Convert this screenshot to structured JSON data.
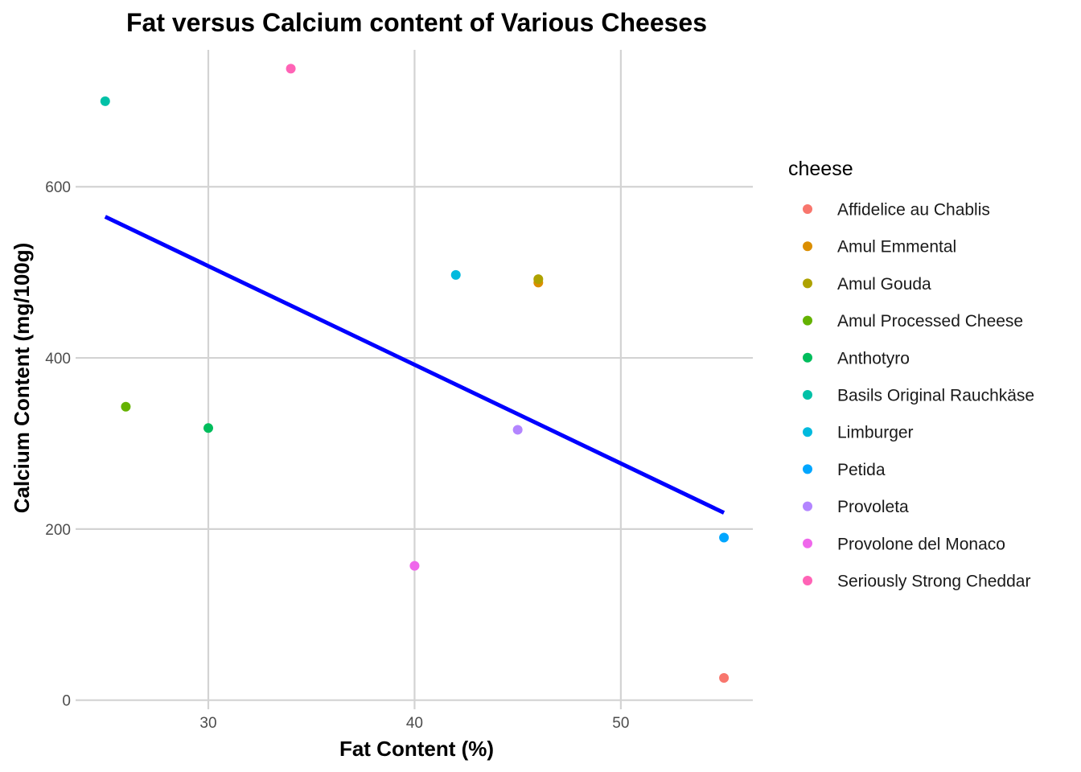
{
  "chart_data": {
    "type": "scatter",
    "title": "Fat versus Calcium content of Various Cheeses",
    "xlabel": "Fat Content (%)",
    "ylabel": "Calcium Content (mg/100g)",
    "xlim": [
      23.8,
      56.4
    ],
    "ylim": [
      -5,
      760
    ],
    "x_ticks": [
      30,
      40,
      50
    ],
    "y_ticks": [
      0,
      200,
      400,
      600
    ],
    "grid": true,
    "legend": {
      "title": "cheese",
      "placement": "right"
    },
    "series": [
      {
        "name": "Affidelice au Chablis",
        "color": "#F8766D",
        "x": [
          55
        ],
        "y": [
          26
        ]
      },
      {
        "name": "Amul Emmental",
        "color": "#DB8E00",
        "x": [
          46
        ],
        "y": [
          488
        ]
      },
      {
        "name": "Amul Gouda",
        "color": "#AEA200",
        "x": [
          46
        ],
        "y": [
          492
        ]
      },
      {
        "name": "Amul Processed Cheese",
        "color": "#64B200",
        "x": [
          26
        ],
        "y": [
          343
        ]
      },
      {
        "name": "Anthotyro",
        "color": "#00BD5C",
        "x": [
          30
        ],
        "y": [
          318
        ]
      },
      {
        "name": "Basils Original Rauchkäse",
        "color": "#00C1A7",
        "x": [
          25
        ],
        "y": [
          700
        ]
      },
      {
        "name": "Limburger",
        "color": "#00BADE",
        "x": [
          42
        ],
        "y": [
          497
        ]
      },
      {
        "name": "Petida",
        "color": "#00A6FF",
        "x": [
          55
        ],
        "y": [
          190
        ]
      },
      {
        "name": "Provoleta",
        "color": "#B385FF",
        "x": [
          45
        ],
        "y": [
          316
        ]
      },
      {
        "name": "Provolone del Monaco",
        "color": "#EF67EB",
        "x": [
          40
        ],
        "y": [
          157
        ]
      },
      {
        "name": "Seriously Strong Cheddar",
        "color": "#FF63B6",
        "x": [
          34
        ],
        "y": [
          738
        ]
      }
    ],
    "trend_line": {
      "color": "#0000FF",
      "x": [
        25,
        55
      ],
      "y": [
        565,
        219
      ]
    }
  }
}
